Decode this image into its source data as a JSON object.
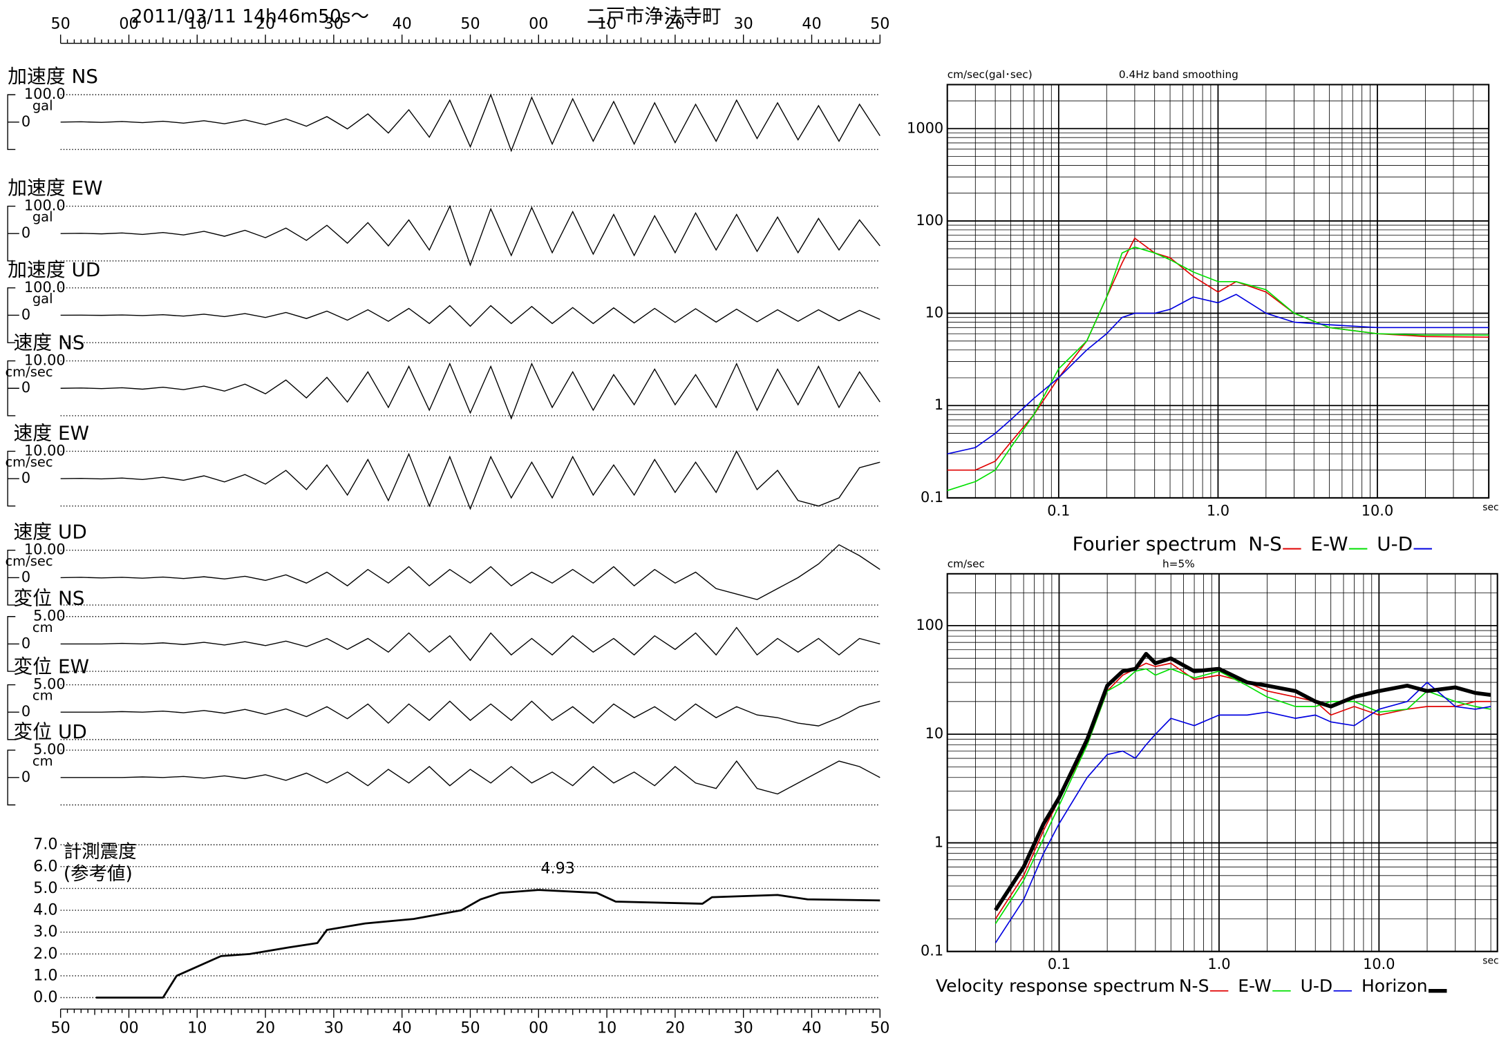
{
  "chart_data": [
    {
      "type": "waveform",
      "title": "2011/03/11  14h46m50s〜",
      "subtitle": "二戸市浄法寺町",
      "xlim": [
        0,
        120
      ],
      "xticks": [
        {
          "value": 0,
          "label": "50"
        },
        {
          "value": 10,
          "label": "00"
        },
        {
          "value": 20,
          "label": "10"
        },
        {
          "value": 30,
          "label": "20"
        },
        {
          "value": 40,
          "label": "30"
        },
        {
          "value": 50,
          "label": "40"
        },
        {
          "value": 60,
          "label": "50"
        },
        {
          "value": 70,
          "label": "00"
        },
        {
          "value": 80,
          "label": "10"
        },
        {
          "value": 90,
          "label": "20"
        },
        {
          "value": 100,
          "label": "30"
        },
        {
          "value": 110,
          "label": "40"
        },
        {
          "value": 120,
          "label": "50"
        }
      ],
      "x": [
        0,
        3,
        6,
        9,
        12,
        15,
        18,
        21,
        24,
        27,
        30,
        33,
        36,
        39,
        42,
        45,
        48,
        51,
        54,
        57,
        60,
        63,
        66,
        69,
        72,
        75,
        78,
        81,
        84,
        87,
        90,
        93,
        96,
        99,
        102,
        105,
        108,
        111,
        114,
        117,
        120
      ],
      "panels": [
        {
          "label": "加速度 NS",
          "unit": "gal",
          "ylim": [
            -100,
            100
          ],
          "yticks": [
            {
              "value": 100,
              "label": "100.0"
            },
            0
          ],
          "values": [
            0,
            1,
            -1,
            2,
            -2,
            3,
            -4,
            5,
            -6,
            8,
            -10,
            12,
            -15,
            20,
            -25,
            30,
            -40,
            45,
            -55,
            80,
            -90,
            100,
            -105,
            90,
            -80,
            85,
            -70,
            75,
            -80,
            70,
            -75,
            65,
            -70,
            80,
            -60,
            70,
            -65,
            60,
            -70,
            65,
            -50
          ]
        },
        {
          "label": "加速度 EW",
          "unit": "gal",
          "ylim": [
            -100,
            100
          ],
          "yticks": [
            {
              "value": 100,
              "label": "100.0"
            },
            0
          ],
          "values": [
            0,
            1,
            -1,
            2,
            -3,
            4,
            -5,
            8,
            -10,
            12,
            -15,
            20,
            -25,
            30,
            -35,
            40,
            -45,
            50,
            -60,
            100,
            -115,
            90,
            -80,
            95,
            -70,
            80,
            -75,
            70,
            -80,
            65,
            -70,
            75,
            -60,
            70,
            -65,
            60,
            -70,
            55,
            -60,
            50,
            -45
          ]
        },
        {
          "label": "加速度 UD",
          "unit": "gal",
          "ylim": [
            -100,
            100
          ],
          "yticks": [
            {
              "value": 100,
              "label": "100.0"
            },
            0
          ],
          "values": [
            0,
            0.5,
            -0.5,
            1,
            -1,
            2,
            -3,
            4,
            -5,
            6,
            -8,
            10,
            -12,
            15,
            -18,
            20,
            -22,
            25,
            -30,
            35,
            -40,
            35,
            -30,
            32,
            -30,
            28,
            -30,
            27,
            -28,
            25,
            -26,
            24,
            -25,
            22,
            -24,
            20,
            -22,
            20,
            -20,
            18,
            -15
          ]
        },
        {
          "label": "速度 NS",
          "unit": "cm/sec",
          "ylim": [
            -10,
            10
          ],
          "yticks": [
            {
              "value": 10,
              "label": "10.00"
            },
            0
          ],
          "values": [
            0,
            0.1,
            -0.1,
            0.2,
            -0.3,
            0.4,
            -0.5,
            0.8,
            -1,
            1.5,
            -2,
            3,
            -3.5,
            4,
            -5,
            6,
            -7,
            8,
            -8,
            9,
            -9,
            8,
            -11,
            9,
            -7,
            6,
            -8,
            5,
            -6,
            7,
            -6,
            5,
            -7,
            9,
            -8,
            7,
            -6,
            8,
            -7,
            6,
            -5
          ]
        },
        {
          "label": "速度 EW",
          "unit": "cm/sec",
          "ylim": [
            -10,
            10
          ],
          "yticks": [
            {
              "value": 10,
              "label": "10.00"
            },
            0
          ],
          "values": [
            0,
            0.1,
            -0.1,
            0.2,
            -0.3,
            0.5,
            -0.6,
            1,
            -1.2,
            1.5,
            -2,
            3,
            -4,
            5,
            -6,
            7,
            -8,
            9,
            -10,
            8,
            -11,
            8,
            -7,
            6,
            -7,
            8,
            -6,
            5,
            -6,
            7,
            -5,
            6,
            -5,
            10,
            -4,
            3,
            -8,
            -10,
            -7,
            4,
            6
          ]
        },
        {
          "label": "速度 UD",
          "unit": "cm/sec",
          "ylim": [
            -10,
            10
          ],
          "yticks": [
            {
              "value": 10,
              "label": "10.00"
            },
            0
          ],
          "values": [
            0,
            0.1,
            -0.1,
            0.1,
            -0.2,
            0.2,
            -0.3,
            0.3,
            -0.5,
            0.5,
            -1,
            1,
            -2,
            2,
            -3,
            3,
            -2,
            4,
            -3,
            3,
            -2,
            4,
            -3,
            2,
            -2,
            3,
            -2,
            4,
            -3,
            3,
            -2,
            2,
            -4,
            -6,
            -8,
            -4,
            0,
            5,
            12,
            8,
            3
          ]
        },
        {
          "label": "変位 NS",
          "unit": "cm",
          "ylim": [
            -5,
            5
          ],
          "yticks": [
            {
              "value": 5,
              "label": "5.00"
            },
            0
          ],
          "values": [
            0,
            0,
            0,
            0.1,
            0,
            0.2,
            -0.1,
            0.3,
            -0.2,
            0.4,
            -0.3,
            0.5,
            -0.5,
            1,
            -1,
            1,
            -1.5,
            2,
            -1.5,
            1.5,
            -3,
            2,
            -2,
            1,
            -2,
            1.5,
            -1.5,
            1,
            -2,
            1.5,
            -1,
            2,
            -2,
            3,
            -2,
            1,
            -1.5,
            1,
            -2,
            1,
            0
          ]
        },
        {
          "label": "変位 EW",
          "unit": "cm",
          "ylim": [
            -5,
            5
          ],
          "yticks": [
            {
              "value": 5,
              "label": "5.00"
            },
            0
          ],
          "values": [
            0,
            0,
            0,
            0.1,
            0,
            0.2,
            -0.1,
            0.3,
            -0.2,
            0.5,
            -0.4,
            0.6,
            -0.8,
            1,
            -1.2,
            1.5,
            -2,
            1.5,
            -1.5,
            2,
            -1.5,
            1.5,
            -1.5,
            2,
            -1.5,
            1,
            -2,
            1.5,
            -1,
            1,
            -1.5,
            1.5,
            -1,
            1,
            -0.5,
            -1,
            -2,
            -2.5,
            -1,
            1,
            2
          ]
        },
        {
          "label": "変位 UD",
          "unit": "cm",
          "ylim": [
            -5,
            5
          ],
          "yticks": [
            {
              "value": 5,
              "label": "5.00"
            },
            0
          ],
          "values": [
            0,
            0,
            0,
            0,
            0.1,
            0,
            0.2,
            -0.1,
            0.3,
            -0.2,
            0.5,
            -0.5,
            0.8,
            -1,
            1,
            -1.5,
            1.5,
            -1,
            2,
            -1.5,
            1.5,
            -1,
            2,
            -1,
            1,
            -1.5,
            2,
            -1,
            1,
            -1.5,
            2,
            -1,
            -2,
            3,
            -2,
            -3,
            -1,
            1,
            3,
            2,
            0
          ]
        }
      ]
    },
    {
      "type": "line",
      "y_label": [
        "計測震度",
        "(参考値)"
      ],
      "annotation": "4.93",
      "xlim": [
        0,
        120
      ],
      "ylim": [
        0,
        7
      ],
      "xticks": [
        {
          "value": 0,
          "label": "50"
        },
        {
          "value": 10,
          "label": "00"
        },
        {
          "value": 20,
          "label": "10"
        },
        {
          "value": 30,
          "label": "20"
        },
        {
          "value": 40,
          "label": "30"
        },
        {
          "value": 50,
          "label": "40"
        },
        {
          "value": 60,
          "label": "50"
        },
        {
          "value": 70,
          "label": "00"
        },
        {
          "value": 80,
          "label": "10"
        },
        {
          "value": 90,
          "label": "20"
        },
        {
          "value": 100,
          "label": "30"
        },
        {
          "value": 110,
          "label": "40"
        },
        {
          "value": 120,
          "label": "50"
        }
      ],
      "yticks": [
        {
          "value": 0,
          "label": "0.0"
        },
        {
          "value": 1,
          "label": "1.0"
        },
        {
          "value": 2,
          "label": "2.0"
        },
        {
          "value": 3,
          "label": "3.0"
        },
        {
          "value": 4,
          "label": "4.0"
        },
        {
          "value": 5,
          "label": "5.0"
        },
        {
          "value": 6,
          "label": "6.0"
        },
        {
          "value": 7,
          "label": "7.0"
        }
      ],
      "grid": "dotted",
      "series": [
        {
          "color": "#000000",
          "x": [
            5.2,
            15,
            17,
            23.5,
            27.7,
            33.4,
            37.6,
            39,
            44.6,
            51.7,
            58.7,
            61.5,
            64.4,
            70,
            78.5,
            81.3,
            94,
            95.4,
            105,
            109.4,
            120
          ],
          "values": [
            0,
            0,
            1.0,
            1.9,
            2.0,
            2.3,
            2.5,
            3.1,
            3.4,
            3.6,
            4.0,
            4.5,
            4.8,
            4.93,
            4.8,
            4.4,
            4.3,
            4.6,
            4.7,
            4.5,
            4.45
          ]
        }
      ]
    },
    {
      "type": "line",
      "log_x": true,
      "log_y": true,
      "y_label": "cm/sec(gal･sec)",
      "subtitle": "0.4Hz band smoothing",
      "x_label": "sec",
      "legend_title": "Fourier spectrum",
      "grid": "solid",
      "xlim": [
        0.02,
        50
      ],
      "ylim": [
        0.1,
        3000
      ],
      "xticks": [
        0.1,
        {
          "value": 1,
          "label": "1.0"
        },
        {
          "value": 10,
          "label": "10.0"
        }
      ],
      "yticks": [
        0.1,
        1,
        10,
        100,
        1000
      ],
      "x": [
        0.02,
        0.03,
        0.04,
        0.05,
        0.07,
        0.1,
        0.15,
        0.2,
        0.25,
        0.3,
        0.4,
        0.5,
        0.7,
        1,
        1.3,
        2,
        3,
        5,
        10,
        20,
        50
      ],
      "series": [
        {
          "name": "N-S",
          "color": "#e00000",
          "values": [
            0.2,
            0.2,
            0.25,
            0.4,
            0.8,
            2,
            5,
            15,
            35,
            65,
            45,
            40,
            25,
            17,
            22,
            17,
            10,
            7,
            6,
            5.6,
            5.5
          ]
        },
        {
          "name": "E-W",
          "color": "#00e000",
          "values": [
            0.12,
            0.15,
            0.2,
            0.35,
            0.8,
            2.5,
            5,
            15,
            45,
            52,
            45,
            38,
            28,
            22,
            22,
            18,
            10,
            7,
            6,
            5.8,
            5.8
          ]
        },
        {
          "name": "U-D",
          "color": "#0000e0",
          "values": [
            0.3,
            0.35,
            0.5,
            0.7,
            1.2,
            2,
            4,
            6,
            9,
            10,
            10,
            11,
            15,
            13,
            16,
            10,
            8,
            7.5,
            7,
            7,
            7
          ]
        }
      ]
    },
    {
      "type": "line",
      "log_x": true,
      "log_y": true,
      "y_label": "cm/sec",
      "subtitle": "h=5%",
      "x_label": "sec",
      "legend_title": "Velocity response spectrum",
      "grid": "solid",
      "xlim": [
        0.02,
        55
      ],
      "ylim": [
        0.1,
        300
      ],
      "xticks": [
        0.1,
        {
          "value": 1,
          "label": "1.0"
        },
        {
          "value": 10,
          "label": "10.0"
        }
      ],
      "yticks": [
        0.1,
        1,
        10,
        100
      ],
      "x": [
        0.04,
        0.06,
        0.08,
        0.1,
        0.15,
        0.2,
        0.25,
        0.3,
        0.35,
        0.4,
        0.5,
        0.7,
        1,
        1.5,
        2,
        3,
        4,
        5,
        7,
        10,
        15,
        20,
        30,
        40,
        50
      ],
      "series": [
        {
          "name": "N-S",
          "color": "#e00000",
          "line_width": 1.2,
          "values": [
            0.2,
            0.5,
            1.3,
            2.5,
            8,
            25,
            35,
            40,
            45,
            42,
            45,
            32,
            35,
            30,
            25,
            22,
            20,
            15,
            18,
            15,
            17,
            18,
            18,
            20,
            20
          ]
        },
        {
          "name": "E-W",
          "color": "#00e000",
          "line_width": 1.2,
          "values": [
            0.18,
            0.45,
            1.1,
            2.2,
            8,
            25,
            30,
            38,
            40,
            35,
            40,
            33,
            38,
            28,
            22,
            18,
            18,
            20,
            20,
            16,
            17,
            25,
            20,
            18,
            17
          ]
        },
        {
          "name": "U-D",
          "color": "#0000e0",
          "line_width": 1.2,
          "values": [
            0.12,
            0.3,
            0.8,
            1.5,
            4,
            6.5,
            7,
            6,
            8,
            10,
            14,
            12,
            15,
            15,
            16,
            14,
            15,
            13,
            12,
            17,
            20,
            30,
            18,
            17,
            18
          ]
        },
        {
          "name": "Horizon",
          "color": "#000000",
          "line_width": 4,
          "values": [
            0.24,
            0.6,
            1.5,
            2.6,
            9,
            28,
            38,
            40,
            55,
            45,
            50,
            38,
            40,
            30,
            28,
            25,
            20,
            18,
            22,
            25,
            28,
            25,
            27,
            24,
            23
          ]
        }
      ]
    }
  ]
}
